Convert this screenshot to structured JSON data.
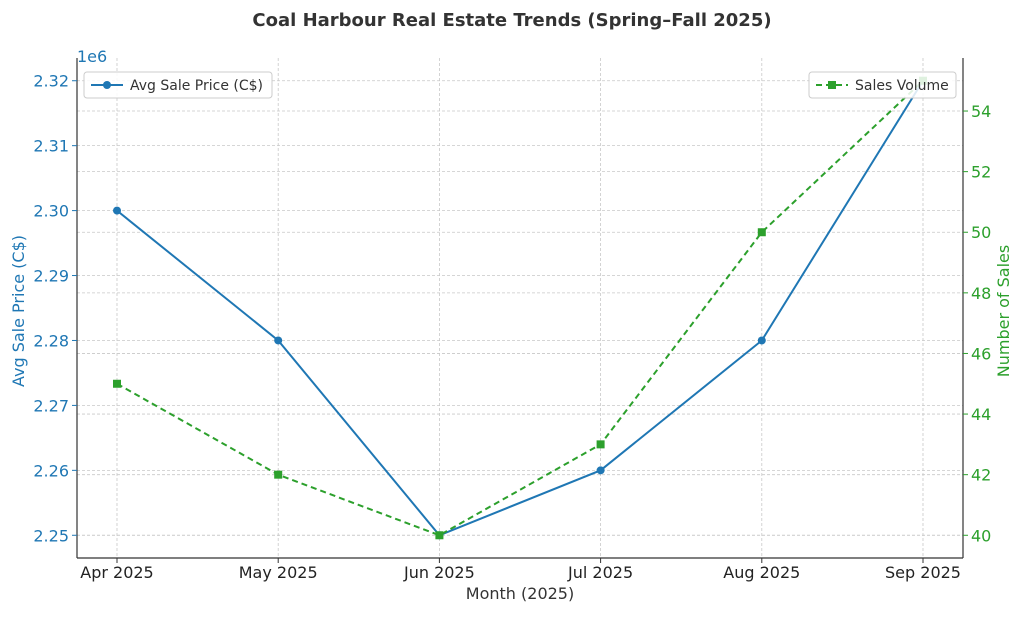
{
  "chart_data": {
    "type": "line",
    "title": "Coal Harbour Real Estate Trends (Spring–Fall 2025)",
    "xlabel": "Month (2025)",
    "categories": [
      "Apr 2025",
      "May 2025",
      "Jun 2025",
      "Jul 2025",
      "Aug 2025",
      "Sep 2025"
    ],
    "left_axis": {
      "label": "Avg Sale Price (C$)",
      "offset_text": "1e6",
      "ticks": [
        2.25,
        2.26,
        2.27,
        2.28,
        2.29,
        2.3,
        2.31,
        2.32
      ],
      "tick_labels": [
        "2.25",
        "2.26",
        "2.27",
        "2.28",
        "2.29",
        "2.30",
        "2.31",
        "2.32"
      ],
      "ylim": [
        2.2465,
        2.3235
      ],
      "color": "#1f77b4"
    },
    "right_axis": {
      "label": "Number of Sales",
      "ticks": [
        40,
        42,
        44,
        46,
        48,
        50,
        52,
        54
      ],
      "tick_labels": [
        "40",
        "42",
        "44",
        "46",
        "48",
        "50",
        "52",
        "54"
      ],
      "ylim": [
        39.25,
        55.75
      ],
      "color": "#2ca02c"
    },
    "series": [
      {
        "name": "Avg Sale Price (C$)",
        "axis": "left",
        "values": [
          2.3,
          2.28,
          2.25,
          2.26,
          2.28,
          2.32
        ],
        "color": "#1f77b4",
        "marker": "circle",
        "linestyle": "solid"
      },
      {
        "name": "Sales Volume",
        "axis": "right",
        "values": [
          45,
          42,
          40,
          43,
          50,
          55
        ],
        "color": "#2ca02c",
        "marker": "square",
        "linestyle": "dashed"
      }
    ],
    "grid": true,
    "legend_left_placement": "upper-left",
    "legend_right_placement": "upper-right"
  }
}
